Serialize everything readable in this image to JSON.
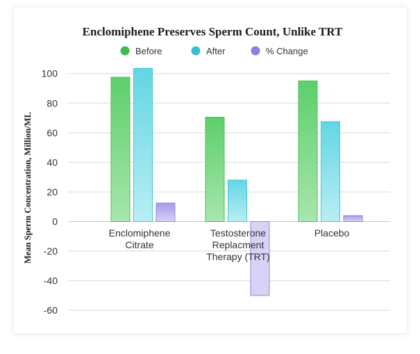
{
  "chart_data": {
    "type": "bar",
    "title": "Enclomiphene Preserves Sperm Count, Unlike TRT",
    "ylabel": "Mean Sperm Concentration, Million/ML",
    "xlabel": "",
    "ylim": [
      -62,
      105
    ],
    "yticks": [
      100,
      80,
      60,
      40,
      20,
      0,
      -20,
      -40,
      -60
    ],
    "grid": true,
    "legend_position": "top-center",
    "categories": [
      [
        "Enclomiphene",
        "Citrate"
      ],
      [
        "Testosterone",
        "Replacment",
        "Therapy (TRT)"
      ],
      [
        "Placebo"
      ]
    ],
    "series": [
      {
        "name": "Before",
        "values": [
          97.5,
          70.5,
          95
        ],
        "color_top": "#5dcf6a",
        "color_bottom": "#a8e6ad",
        "stroke": "#4cbd59",
        "marker": "#3dbb4b"
      },
      {
        "name": "After",
        "values": [
          103.5,
          28,
          67.5
        ],
        "color_top": "#63d6e3",
        "color_bottom": "#b9eef4",
        "stroke": "#45c6d6",
        "marker": "#37c0d3"
      },
      {
        "name": "% Change",
        "values": [
          12.5,
          -50,
          4
        ],
        "color_top": "#a69ae8",
        "color_bottom": "#d7d2f6",
        "stroke": "#9387e0",
        "marker": "#8d7fdf"
      }
    ]
  }
}
